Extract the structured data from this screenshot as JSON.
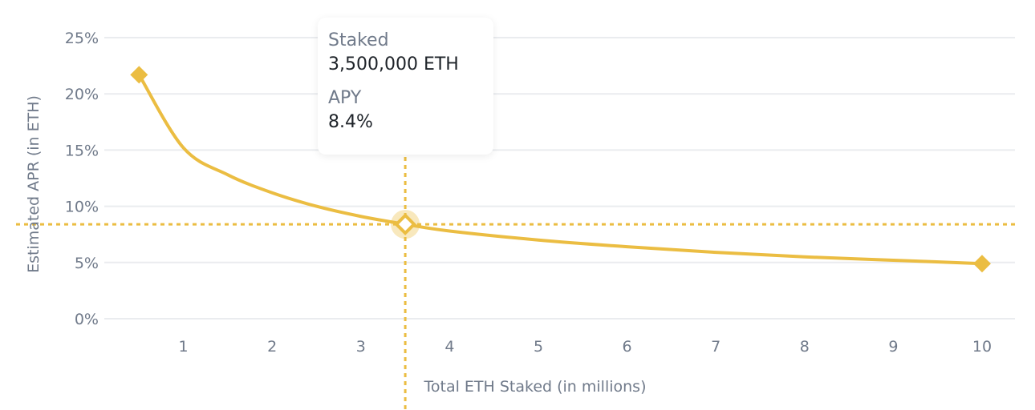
{
  "chart_data": {
    "type": "line",
    "title": "",
    "xlabel": "Total ETH Staked (in millions)",
    "ylabel": "Estimated APR (in ETH)",
    "xlim": [
      0,
      10.3
    ],
    "ylim": [
      0,
      25
    ],
    "x_ticks": [
      "1",
      "2",
      "3",
      "4",
      "5",
      "6",
      "7",
      "8",
      "9",
      "10"
    ],
    "x_tick_values": [
      1,
      2,
      3,
      4,
      5,
      6,
      7,
      8,
      9,
      10
    ],
    "y_ticks": [
      "0%",
      "5%",
      "10%",
      "15%",
      "20%",
      "25%"
    ],
    "y_tick_values": [
      0,
      5,
      10,
      15,
      20,
      25
    ],
    "grid": true,
    "series": [
      {
        "name": "Estimated APR",
        "color": "#ebbd42",
        "x": [
          0.5,
          1,
          1.5,
          2,
          2.5,
          3,
          3.5,
          4,
          5,
          6,
          7,
          8,
          9,
          10
        ],
        "y": [
          21.7,
          15.2,
          12.8,
          11.2,
          10.0,
          9.1,
          8.4,
          7.8,
          7.0,
          6.4,
          5.9,
          5.5,
          5.2,
          4.9
        ]
      }
    ],
    "endpoint_markers": [
      0.5,
      10
    ],
    "highlight": {
      "x": 3.5,
      "y": 8.4
    }
  },
  "tooltip": {
    "staked_label": "Staked",
    "staked_value": "3,500,000 ETH",
    "apy_label": "APY",
    "apy_value": "8.4%"
  }
}
